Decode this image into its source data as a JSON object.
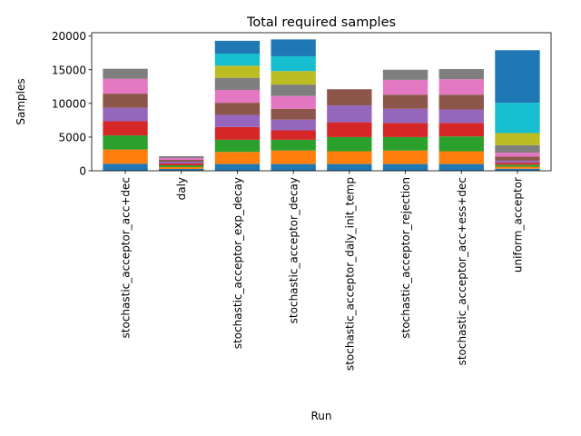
{
  "chart_data": {
    "type": "bar",
    "stacked": true,
    "title": "Total required samples",
    "xlabel": "Run",
    "ylabel": "Samples",
    "ylim": [
      0,
      20500
    ],
    "yticks": [
      0,
      5000,
      10000,
      15000,
      20000
    ],
    "ytick_labels": [
      "0",
      "5000",
      "10000",
      "15000",
      "20000"
    ],
    "grid": false,
    "legend": "none",
    "categories": [
      "stochastic_acceptor_acc+dec",
      "daly",
      "stochastic_acceptor_exp_decay",
      "stochastic_acceptor_decay",
      "stochastic_acceptor_daly_init_temp",
      "stochastic_acceptor_rejection",
      "stochastic_acceptor_acc+ess+dec",
      "uniform_acceptor"
    ],
    "series": [
      {
        "color": "#1f77b4",
        "values": [
          1050,
          270,
          1000,
          1000,
          1000,
          1000,
          1000,
          300
        ]
      },
      {
        "color": "#ff7f0e",
        "values": [
          2100,
          270,
          1800,
          2000,
          1900,
          2000,
          1900,
          300
        ]
      },
      {
        "color": "#2ca02c",
        "values": [
          2100,
          270,
          1800,
          1600,
          2100,
          2000,
          2200,
          300
        ]
      },
      {
        "color": "#d62728",
        "values": [
          2100,
          270,
          1900,
          1400,
          2200,
          2100,
          2000,
          300
        ]
      },
      {
        "color": "#9467bd",
        "values": [
          2000,
          270,
          1800,
          1600,
          2500,
          2100,
          2000,
          300
        ]
      },
      {
        "color": "#8c564b",
        "values": [
          2100,
          270,
          1800,
          1600,
          2400,
          2100,
          2200,
          600
        ]
      },
      {
        "color": "#e377c2",
        "values": [
          2200,
          270,
          1900,
          1900,
          0,
          2200,
          2300,
          600
        ]
      },
      {
        "color": "#7f7f7f",
        "values": [
          1500,
          270,
          1800,
          1700,
          0,
          1500,
          1500,
          1100
        ]
      },
      {
        "color": "#bcbd22",
        "values": [
          0,
          0,
          1800,
          2000,
          0,
          0,
          0,
          1800
        ]
      },
      {
        "color": "#17becf",
        "values": [
          0,
          0,
          1800,
          2200,
          0,
          0,
          0,
          4500
        ]
      },
      {
        "color": "#1f77b4",
        "values": [
          0,
          0,
          1900,
          2500,
          0,
          0,
          0,
          7800
        ]
      }
    ]
  }
}
